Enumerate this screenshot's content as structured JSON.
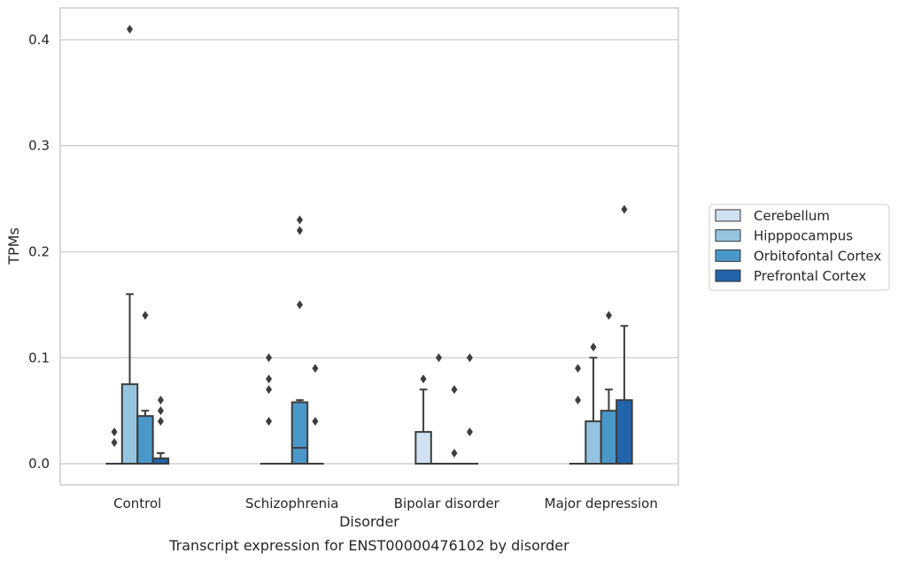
{
  "chart_data": {
    "type": "box",
    "xlabel": "Disorder",
    "ylabel": "TPMs",
    "caption": "Transcript expression for ENST00000476102 by disorder",
    "ylim": [
      -0.02,
      0.43
    ],
    "yticks": [
      0.0,
      0.1,
      0.2,
      0.3,
      0.4
    ],
    "ytick_labels": [
      "0.0",
      "0.1",
      "0.2",
      "0.3",
      "0.4"
    ],
    "grid": "horizontal",
    "legend_position": "right",
    "categories": [
      "Control",
      "Schizophrenia",
      "Bipolar disorder",
      "Major depression"
    ],
    "series": [
      {
        "name": "Cerebellum",
        "color": "#d0e1f2",
        "boxes": [
          {
            "q1": 0,
            "median": 0,
            "q3": 0,
            "whisker_low": 0,
            "whisker_high": 0,
            "outliers": [
              0.02,
              0.03
            ]
          },
          {
            "q1": 0,
            "median": 0,
            "q3": 0,
            "whisker_low": 0,
            "whisker_high": 0,
            "outliers": [
              0.04,
              0.07,
              0.08,
              0.1
            ]
          },
          {
            "q1": 0,
            "median": 0,
            "q3": 0.03,
            "whisker_low": 0,
            "whisker_high": 0.07,
            "outliers": [
              0.08
            ]
          },
          {
            "q1": 0,
            "median": 0,
            "q3": 0,
            "whisker_low": 0,
            "whisker_high": 0,
            "outliers": [
              0.06,
              0.09
            ]
          }
        ]
      },
      {
        "name": "Hipppocampus",
        "color": "#94c4df",
        "boxes": [
          {
            "q1": 0,
            "median": 0,
            "q3": 0.075,
            "whisker_low": 0,
            "whisker_high": 0.16,
            "outliers": [
              0.41
            ]
          },
          {
            "q1": 0,
            "median": 0,
            "q3": 0,
            "whisker_low": 0,
            "whisker_high": 0,
            "outliers": []
          },
          {
            "q1": 0,
            "median": 0,
            "q3": 0,
            "whisker_low": 0,
            "whisker_high": 0,
            "outliers": [
              0.1
            ]
          },
          {
            "q1": 0,
            "median": 0,
            "q3": 0.04,
            "whisker_low": 0,
            "whisker_high": 0.1,
            "outliers": [
              0.11
            ]
          }
        ]
      },
      {
        "name": "Orbitofontal Cortex",
        "color": "#4a98c9",
        "boxes": [
          {
            "q1": 0,
            "median": 0,
            "q3": 0.045,
            "whisker_low": 0,
            "whisker_high": 0.05,
            "outliers": [
              0.14
            ]
          },
          {
            "q1": 0,
            "median": 0.015,
            "q3": 0.058,
            "whisker_low": 0,
            "whisker_high": 0.06,
            "outliers": [
              0.15,
              0.22,
              0.23
            ]
          },
          {
            "q1": 0,
            "median": 0,
            "q3": 0,
            "whisker_low": 0,
            "whisker_high": 0,
            "outliers": [
              0.01,
              0.07
            ]
          },
          {
            "q1": 0,
            "median": 0,
            "q3": 0.05,
            "whisker_low": 0,
            "whisker_high": 0.07,
            "outliers": [
              0.14
            ]
          }
        ]
      },
      {
        "name": "Prefrontal Cortex",
        "color": "#2164ab",
        "boxes": [
          {
            "q1": 0,
            "median": 0,
            "q3": 0.005,
            "whisker_low": 0,
            "whisker_high": 0.01,
            "outliers": [
              0.04,
              0.05,
              0.06
            ]
          },
          {
            "q1": 0,
            "median": 0,
            "q3": 0,
            "whisker_low": 0,
            "whisker_high": 0,
            "outliers": [
              0.04,
              0.09
            ]
          },
          {
            "q1": 0,
            "median": 0,
            "q3": 0,
            "whisker_low": 0,
            "whisker_high": 0,
            "outliers": [
              0.03,
              0.1
            ]
          },
          {
            "q1": 0,
            "median": 0,
            "q3": 0.06,
            "whisker_low": 0,
            "whisker_high": 0.13,
            "outliers": [
              0.24
            ]
          }
        ]
      }
    ]
  }
}
